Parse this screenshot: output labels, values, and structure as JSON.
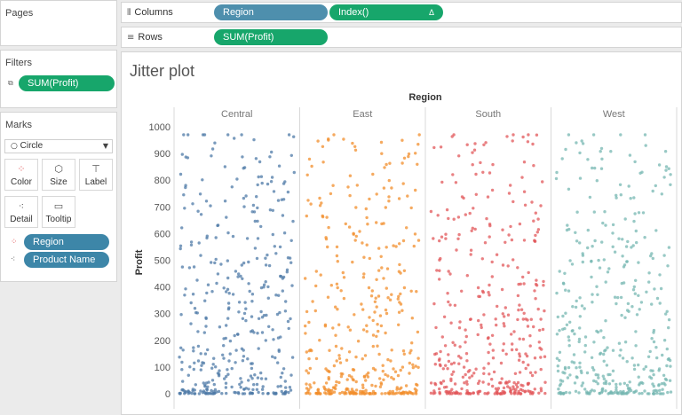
{
  "pages": {
    "title": "Pages"
  },
  "filters": {
    "title": "Filters",
    "pill": "SUM(Profit)"
  },
  "marks": {
    "title": "Marks",
    "mark_type": "Circle",
    "buttons": {
      "color": "Color",
      "size": "Size",
      "label": "Label",
      "detail": "Detail",
      "tooltip": "Tooltip"
    },
    "fields": [
      "Region",
      "Product Name"
    ]
  },
  "shelves": {
    "columns_label": "Columns",
    "columns_pills": [
      "Region",
      "Index()"
    ],
    "rows_label": "Rows",
    "rows_pills": [
      "SUM(Profit)"
    ],
    "delta_glyph": "Δ"
  },
  "chart_data": {
    "type": "scatter",
    "title": "Jitter plot",
    "header": "Region",
    "ylabel": "Profit",
    "ylim": [
      0,
      1000
    ],
    "yticks": [
      0,
      100,
      200,
      300,
      400,
      500,
      600,
      700,
      800,
      900,
      1000
    ],
    "grid": false,
    "series": [
      {
        "name": "Central",
        "color": "#4e79a7"
      },
      {
        "name": "East",
        "color": "#f28e2b"
      },
      {
        "name": "South",
        "color": "#e15759"
      },
      {
        "name": "West",
        "color": "#76b7b2"
      }
    ]
  }
}
